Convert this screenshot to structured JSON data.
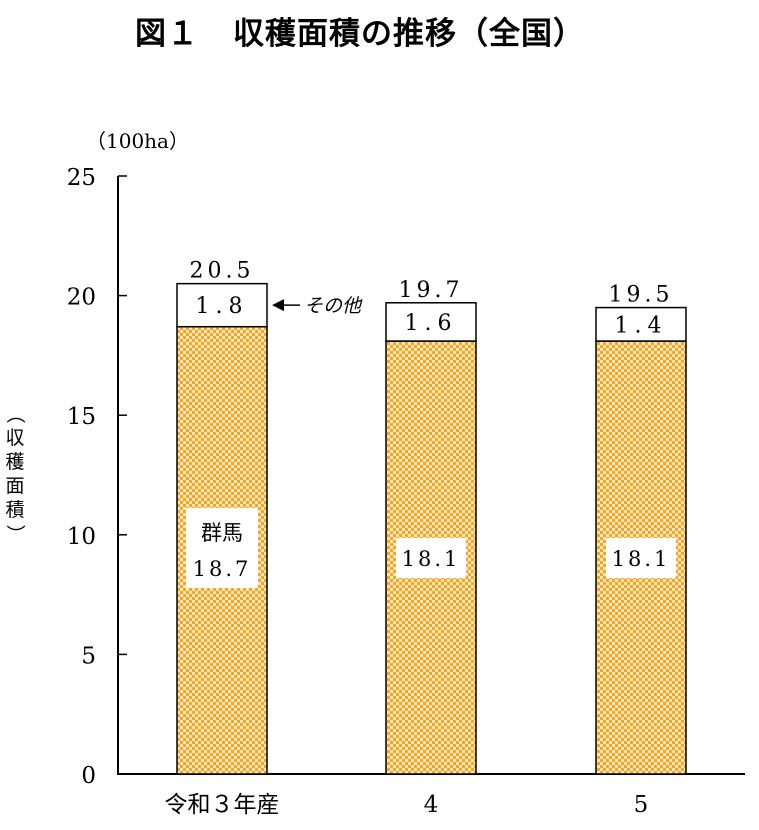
{
  "title": {
    "label": "図１",
    "text": "収穫面積の推移（全国）"
  },
  "chart_data": {
    "type": "bar",
    "stacked": true,
    "categories": [
      "令和３年産",
      "4",
      "5"
    ],
    "series": [
      {
        "name": "群馬",
        "values": [
          18.7,
          18.1,
          18.1
        ],
        "value_labels": [
          "18.7",
          "18.1",
          "18.1"
        ]
      },
      {
        "name": "その他",
        "values": [
          1.8,
          1.6,
          1.4
        ],
        "value_labels": [
          "1.8",
          "1.6",
          "1.4"
        ]
      }
    ],
    "totals": [
      20.5,
      19.7,
      19.5
    ],
    "total_labels": [
      "20.5",
      "19.7",
      "19.5"
    ],
    "unit": "（100ha）",
    "ylabel": "（収穫面積）",
    "yticks": [
      0,
      5,
      10,
      15,
      20,
      25
    ],
    "ylim": [
      0,
      25
    ],
    "annotation": "その他",
    "colors": {
      "gunma_fill": "#f5a623",
      "gunma_check": "#fde7c0",
      "other_fill": "#ffffff",
      "axis": "#000000"
    }
  }
}
